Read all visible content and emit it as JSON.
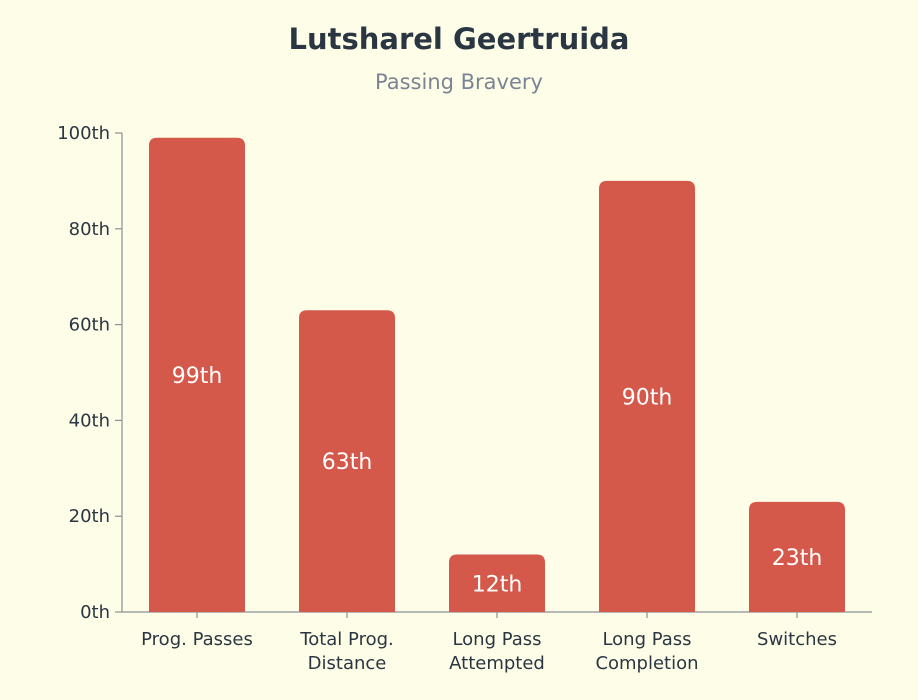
{
  "chart_data": {
    "type": "bar",
    "title": "Lutsharel Geertruida",
    "subtitle": "Passing Bravery",
    "categories": [
      [
        "Prog. Passes"
      ],
      [
        "Total Prog.",
        "Distance"
      ],
      [
        "Long Pass",
        "Attempted"
      ],
      [
        "Long Pass",
        "Completion"
      ],
      [
        "Switches"
      ]
    ],
    "values": [
      99,
      63,
      12,
      90,
      23
    ],
    "data_labels": [
      "99th",
      "63th",
      "12th",
      "90th",
      "23th"
    ],
    "yticks": [
      "0th",
      "20th",
      "40th",
      "60th",
      "80th",
      "100th"
    ],
    "ylim": [
      0,
      100
    ],
    "grid": false,
    "bar_color": "#d4594a"
  }
}
